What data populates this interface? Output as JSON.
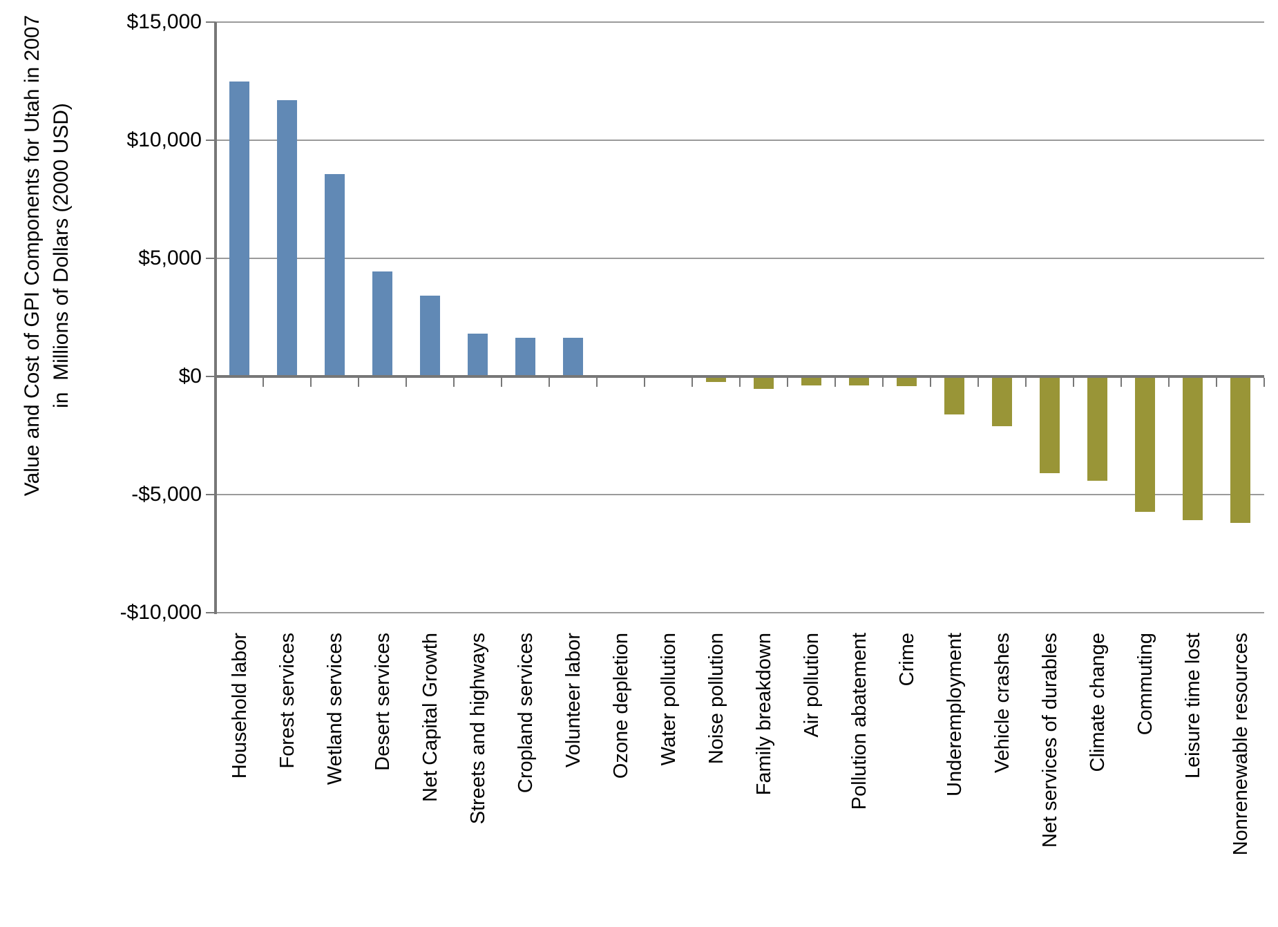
{
  "chart_data": {
    "type": "bar",
    "title": "",
    "ylabel_line1": "Value and Cost of GPI Components for Utah in 2007",
    "ylabel_line2": "in  Millions of Dollars (2000 USD)",
    "xlabel": "",
    "categories": [
      "Household labor",
      "Forest services",
      "Wetland services",
      "Desert services",
      "Net Capital Growth",
      "Streets and highways",
      "Cropland services",
      "Volunteer labor",
      "Ozone depletion",
      "Water pollution",
      "Noise pollution",
      "Family breakdown",
      "Air pollution",
      "Pollution abatement",
      "Crime",
      "Underemployment",
      "Vehicle crashes",
      "Net services of durables",
      "Climate change",
      "Commuting",
      "Leisure time lost",
      "Nonrenewable resources"
    ],
    "values": [
      12500,
      11700,
      8570,
      4430,
      3430,
      1810,
      1650,
      1650,
      0,
      -40,
      -230,
      -520,
      -380,
      -370,
      -410,
      -1620,
      -2100,
      -4080,
      -4420,
      -5730,
      -6070,
      -6210
    ],
    "ylim": [
      -10000,
      15000
    ],
    "y_ticks": [
      {
        "label": "$15,000",
        "value": 15000
      },
      {
        "label": "$10,000",
        "value": 10000
      },
      {
        "label": "$5,000",
        "value": 5000
      },
      {
        "label": "$0",
        "value": 0
      },
      {
        "label": "-$5,000",
        "value": -5000
      },
      {
        "label": "-$10,000",
        "value": -10000
      }
    ],
    "grid": true,
    "legend": false,
    "colors": {
      "positive": "#6189B5",
      "negative": "#999537",
      "gridline": "#9A9A9A",
      "axis": "#777777",
      "text": "#000000",
      "background": "#FFFFFF"
    }
  }
}
